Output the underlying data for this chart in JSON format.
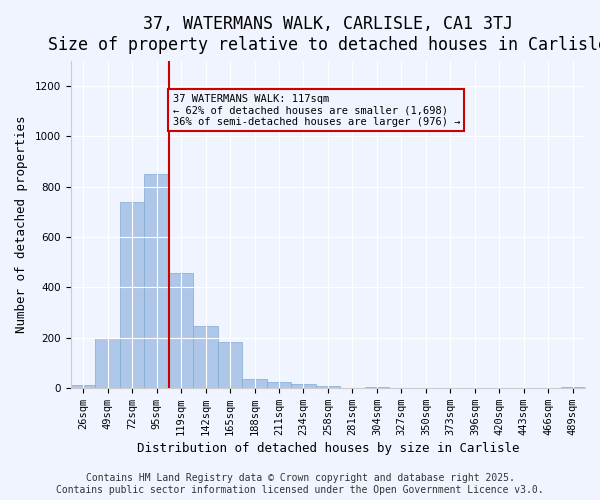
{
  "title": "37, WATERMANS WALK, CARLISLE, CA1 3TJ",
  "subtitle": "Size of property relative to detached houses in Carlisle",
  "xlabel": "Distribution of detached houses by size in Carlisle",
  "ylabel": "Number of detached properties",
  "categories": [
    "26sqm",
    "49sqm",
    "72sqm",
    "95sqm",
    "119sqm",
    "142sqm",
    "165sqm",
    "188sqm",
    "211sqm",
    "234sqm",
    "258sqm",
    "281sqm",
    "304sqm",
    "327sqm",
    "350sqm",
    "373sqm",
    "396sqm",
    "420sqm",
    "443sqm",
    "466sqm",
    "489sqm"
  ],
  "values": [
    10,
    200,
    740,
    850,
    455,
    245,
    182,
    35,
    22,
    15,
    8,
    0,
    5,
    0,
    0,
    0,
    0,
    0,
    0,
    0,
    5
  ],
  "bar_color": "#aec6e8",
  "bar_edge_color": "#7eabd4",
  "property_line_x": 4,
  "property_line_color": "#cc0000",
  "annotation_text": "37 WATERMANS WALK: 117sqm\n← 62% of detached houses are smaller (1,698)\n36% of semi-detached houses are larger (976) →",
  "annotation_box_color": "#cc0000",
  "ylim": [
    0,
    1300
  ],
  "yticks": [
    0,
    200,
    400,
    600,
    800,
    1000,
    1200
  ],
  "background_color": "#f0f4ff",
  "footer_text": "Contains HM Land Registry data © Crown copyright and database right 2025.\nContains public sector information licensed under the Open Government Licence v3.0.",
  "title_fontsize": 12,
  "subtitle_fontsize": 11,
  "label_fontsize": 9,
  "tick_fontsize": 7.5,
  "footer_fontsize": 7
}
